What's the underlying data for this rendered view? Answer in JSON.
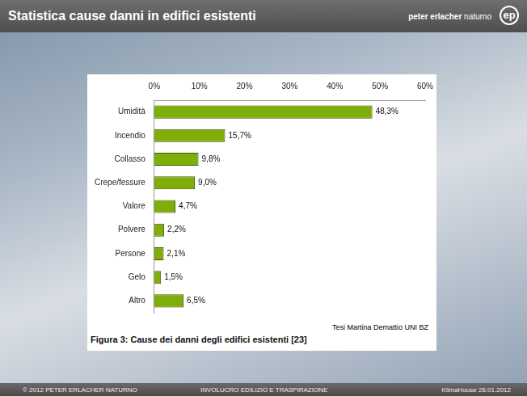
{
  "header": {
    "title": "Statistica cause danni in edifici esistenti",
    "brand": "peter erlacher",
    "place": "naturno",
    "logo": "ep"
  },
  "footer": [
    "© 2012 PETER ERLACHER NATURNO",
    "INVOLUCRO EDILIZIO E TRASPIRAZIONE",
    "KlimaHouse 26.01.2012"
  ],
  "chart_data": {
    "type": "bar",
    "orientation": "horizontal",
    "title": "Figura 3: Cause dei danni degli edifici esistenti [23]",
    "annotations": [
      "Tesi Martina Demattio UNI BZ"
    ],
    "categories": [
      "Umidità",
      "Incendio",
      "Collasso",
      "Crepe/fessure",
      "Valore",
      "Polvere",
      "Persone",
      "Gelo",
      "Altro"
    ],
    "values": [
      48.3,
      15.7,
      9.8,
      9.0,
      4.7,
      2.2,
      2.1,
      1.5,
      6.5
    ],
    "value_labels": [
      "48,3%",
      "15,7%",
      "9,8%",
      "9,0%",
      "4,7%",
      "2,2%",
      "2,1%",
      "1,5%",
      "6,5%"
    ],
    "data_labels": true,
    "color": "#7fae0a",
    "xlim": [
      0,
      60
    ],
    "xticks": [
      {
        "value": 0,
        "label": "0%"
      },
      {
        "value": 10,
        "label": "10%"
      },
      {
        "value": 20,
        "label": "20%"
      },
      {
        "value": 30,
        "label": "30%"
      },
      {
        "value": 40,
        "label": "40%"
      },
      {
        "value": 50,
        "label": "50%"
      },
      {
        "value": 60,
        "label": "60%"
      }
    ],
    "grid": false
  }
}
